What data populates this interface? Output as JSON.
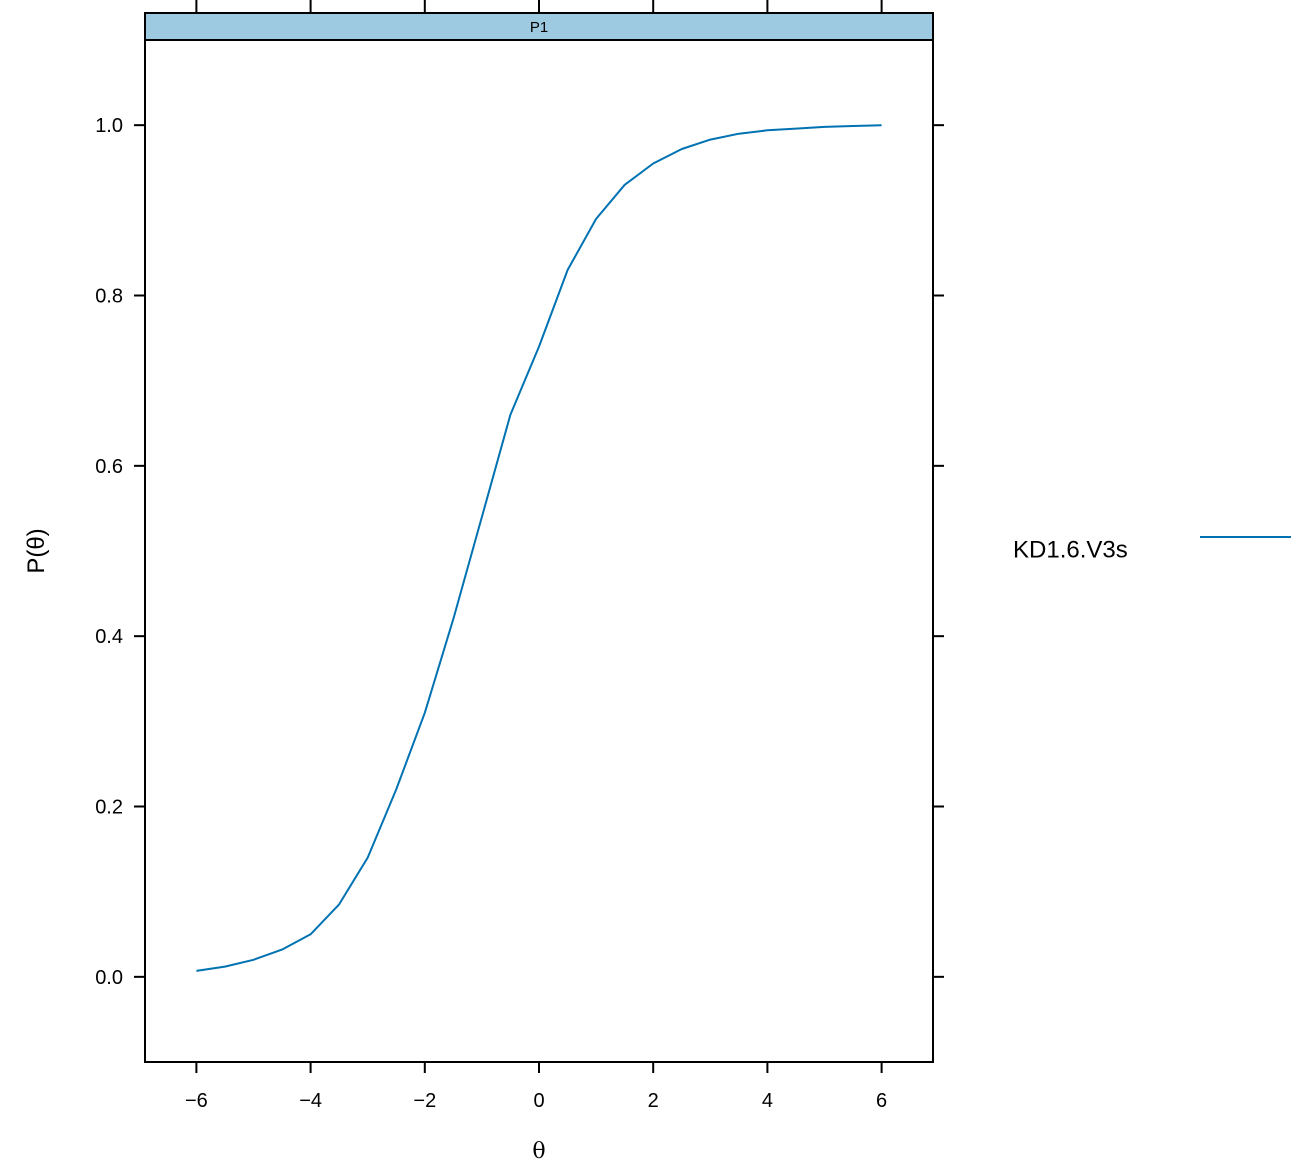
{
  "chart_data": {
    "type": "line",
    "panel_strip": "P1",
    "ylabel": "P(θ)",
    "xlabel": "θ",
    "xlim": [
      -6.9,
      6.9
    ],
    "ylim": [
      -0.1,
      1.1
    ],
    "x_ticks": [
      -6,
      -4,
      -2,
      0,
      2,
      4,
      6
    ],
    "x_tick_labels": [
      "−6",
      "−4",
      "−2",
      "0",
      "2",
      "4",
      "6"
    ],
    "y_ticks": [
      0.0,
      0.2,
      0.4,
      0.6,
      0.8,
      1.0
    ],
    "y_tick_labels": [
      "0.0",
      "0.2",
      "0.4",
      "0.6",
      "0.8",
      "1.0"
    ],
    "grid": false,
    "legend_position": "right",
    "strip_color": "#9ecae1",
    "series": [
      {
        "name": "KD1.6.V3s",
        "color": "#0072b2",
        "x": [
          -6.0,
          -5.5,
          -5.0,
          -4.5,
          -4.0,
          -3.5,
          -3.0,
          -2.5,
          -2.0,
          -1.5,
          -1.0,
          -0.5,
          0.0,
          0.5,
          1.0,
          1.5,
          2.0,
          2.5,
          3.0,
          3.5,
          4.0,
          4.5,
          5.0,
          5.5,
          6.0
        ],
        "y": [
          0.007,
          0.012,
          0.02,
          0.032,
          0.05,
          0.085,
          0.14,
          0.22,
          0.31,
          0.42,
          0.54,
          0.66,
          0.74,
          0.83,
          0.89,
          0.93,
          0.955,
          0.972,
          0.983,
          0.99,
          0.994,
          0.996,
          0.998,
          0.999,
          1.0
        ]
      }
    ]
  }
}
